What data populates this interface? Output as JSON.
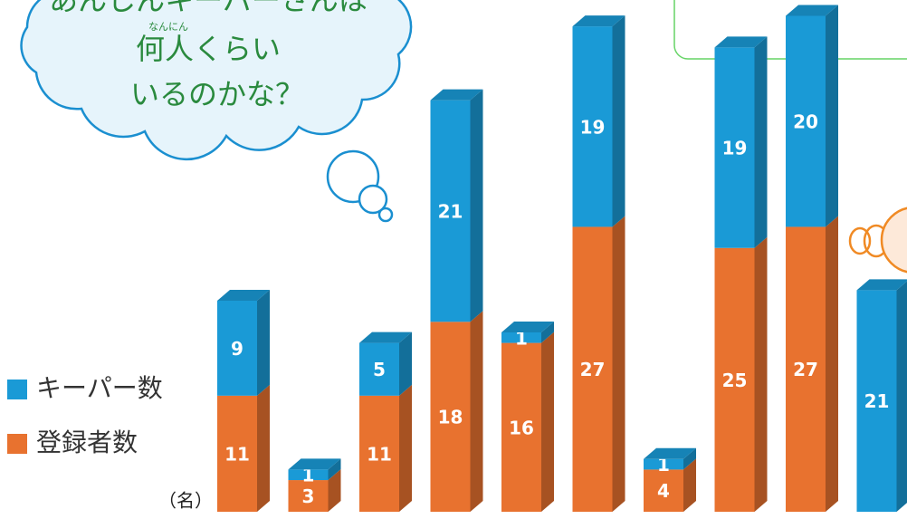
{
  "chart_data": {
    "type": "bar",
    "stacked": true,
    "unit_label": "（名）",
    "categories": [
      null,
      null,
      null,
      null,
      null,
      null,
      null,
      null,
      null,
      null
    ],
    "series": [
      {
        "name": "登録者数",
        "color": "#e8722f",
        "values": [
          11,
          3,
          11,
          18,
          16,
          27,
          4,
          25,
          27,
          null
        ]
      },
      {
        "name": "キーパー数",
        "color": "#1a9ad6",
        "values": [
          9,
          1,
          5,
          21,
          1,
          19,
          1,
          19,
          20,
          21
        ]
      }
    ],
    "bubble": {
      "ruby": "なんにん",
      "lines": [
        "あんしんキーパーさんは",
        "何人くらい",
        "いるのかな？"
      ]
    }
  }
}
